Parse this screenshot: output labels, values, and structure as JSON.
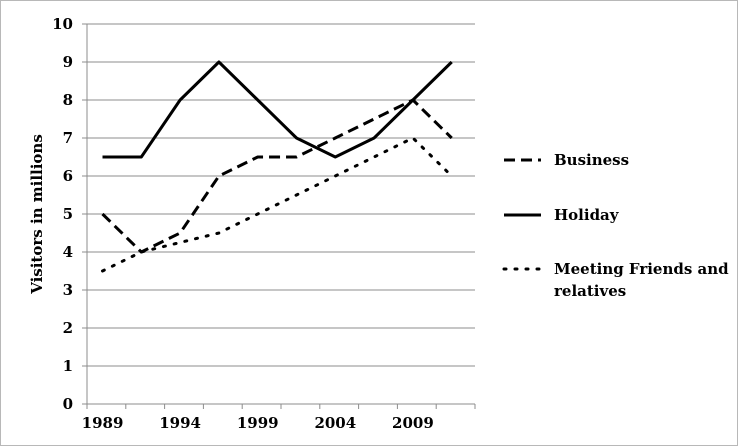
{
  "chart_data": {
    "type": "line",
    "title": "",
    "xlabel": "",
    "ylabel": "Visitors in millions",
    "x_tick_labels": [
      "1989",
      "1994",
      "1999",
      "2004",
      "2009"
    ],
    "y_tick_labels": [
      "0",
      "1",
      "2",
      "3",
      "4",
      "5",
      "6",
      "7",
      "8",
      "9",
      "10"
    ],
    "ylim": [
      0,
      10
    ],
    "xlim": [
      1988,
      2013
    ],
    "grid": true,
    "legend_position": "right",
    "series": [
      {
        "name": "Business",
        "style": "dashed",
        "color": "#000000",
        "points": [
          {
            "x": 1989,
            "y": 5
          },
          {
            "x": 1991.5,
            "y": 4
          },
          {
            "x": 1994,
            "y": 4.5
          },
          {
            "x": 1996.5,
            "y": 6
          },
          {
            "x": 1999,
            "y": 6.5
          },
          {
            "x": 2001.5,
            "y": 6.5
          },
          {
            "x": 2004,
            "y": 7
          },
          {
            "x": 2006.5,
            "y": 7.5
          },
          {
            "x": 2009,
            "y": 8
          },
          {
            "x": 2011.5,
            "y": 7
          }
        ]
      },
      {
        "name": "Holiday",
        "style": "solid",
        "color": "#000000",
        "points": [
          {
            "x": 1989,
            "y": 6.5
          },
          {
            "x": 1991.5,
            "y": 6.5
          },
          {
            "x": 1994,
            "y": 8
          },
          {
            "x": 1996.5,
            "y": 9
          },
          {
            "x": 1999,
            "y": 8
          },
          {
            "x": 2001.5,
            "y": 7
          },
          {
            "x": 2004,
            "y": 6.5
          },
          {
            "x": 2006.5,
            "y": 7
          },
          {
            "x": 2009,
            "y": 8
          },
          {
            "x": 2011.5,
            "y": 9
          }
        ]
      },
      {
        "name": "Meeting Friends and relatives",
        "legend_lines": [
          "Meeting Friends and",
          "relatives"
        ],
        "style": "dotted",
        "color": "#000000",
        "points": [
          {
            "x": 1989,
            "y": 3.5
          },
          {
            "x": 1991.5,
            "y": 4
          },
          {
            "x": 1994,
            "y": 4.25
          },
          {
            "x": 1996.5,
            "y": 4.5
          },
          {
            "x": 1999,
            "y": 5
          },
          {
            "x": 2001.5,
            "y": 5.5
          },
          {
            "x": 2004,
            "y": 6
          },
          {
            "x": 2006.5,
            "y": 6.5
          },
          {
            "x": 2009,
            "y": 7
          },
          {
            "x": 2011.5,
            "y": 6
          }
        ]
      }
    ]
  }
}
